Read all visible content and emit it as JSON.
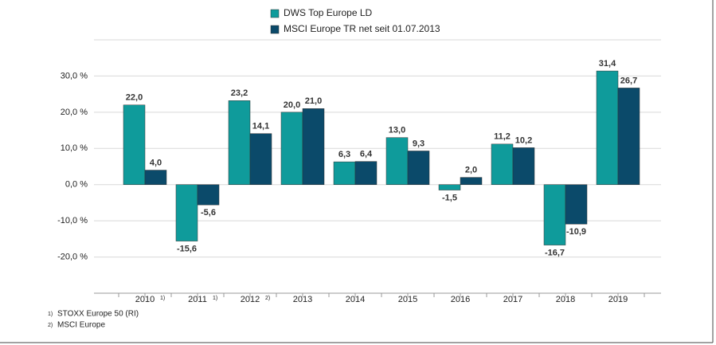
{
  "chart_data": {
    "type": "bar",
    "categories": [
      "2010",
      "2011",
      "2012",
      "2013",
      "2014",
      "2015",
      "2016",
      "2017",
      "2018",
      "2019"
    ],
    "category_notes": [
      "1)",
      "1)",
      "2)",
      null,
      null,
      null,
      null,
      null,
      null,
      null
    ],
    "series": [
      {
        "name": "DWS Top Europe  LD",
        "color": "#0f9b9b",
        "values": [
          22.0,
          -15.6,
          23.2,
          20.0,
          6.3,
          13.0,
          -1.5,
          11.2,
          -16.7,
          31.4
        ],
        "value_labels": [
          "22,0",
          "-15,6",
          "23,2",
          "20,0",
          "6,3",
          "13,0",
          "-1,5",
          "11,2",
          "-16,7",
          "31,4"
        ]
      },
      {
        "name": "MSCI Europe TR net seit 01.07.2013",
        "color": "#0b4a6a",
        "values": [
          4.0,
          -5.6,
          14.1,
          21.0,
          6.4,
          9.3,
          2.0,
          10.2,
          -10.9,
          26.7
        ],
        "value_labels": [
          "4,0",
          "-5,6",
          "14,1",
          "21,0",
          "6,4",
          "9,3",
          "2,0",
          "10,2",
          "-10,9",
          "26,7"
        ]
      }
    ],
    "ylim": [
      -30,
      40
    ],
    "yticks": [
      {
        "value": -20,
        "label": "-20,0 %"
      },
      {
        "value": -10,
        "label": "-10,0 %"
      },
      {
        "value": 0,
        "label": "0,0 %"
      },
      {
        "value": 10,
        "label": "10,0 %"
      },
      {
        "value": 20,
        "label": "20,0 %"
      },
      {
        "value": 30,
        "label": "30,0 %"
      }
    ],
    "grid": true,
    "legend": "top",
    "footnotes": [
      {
        "marker": "1)",
        "text": "STOXX Europe 50 (RI)"
      },
      {
        "marker": "2)",
        "text": "MSCI Europe"
      }
    ]
  }
}
